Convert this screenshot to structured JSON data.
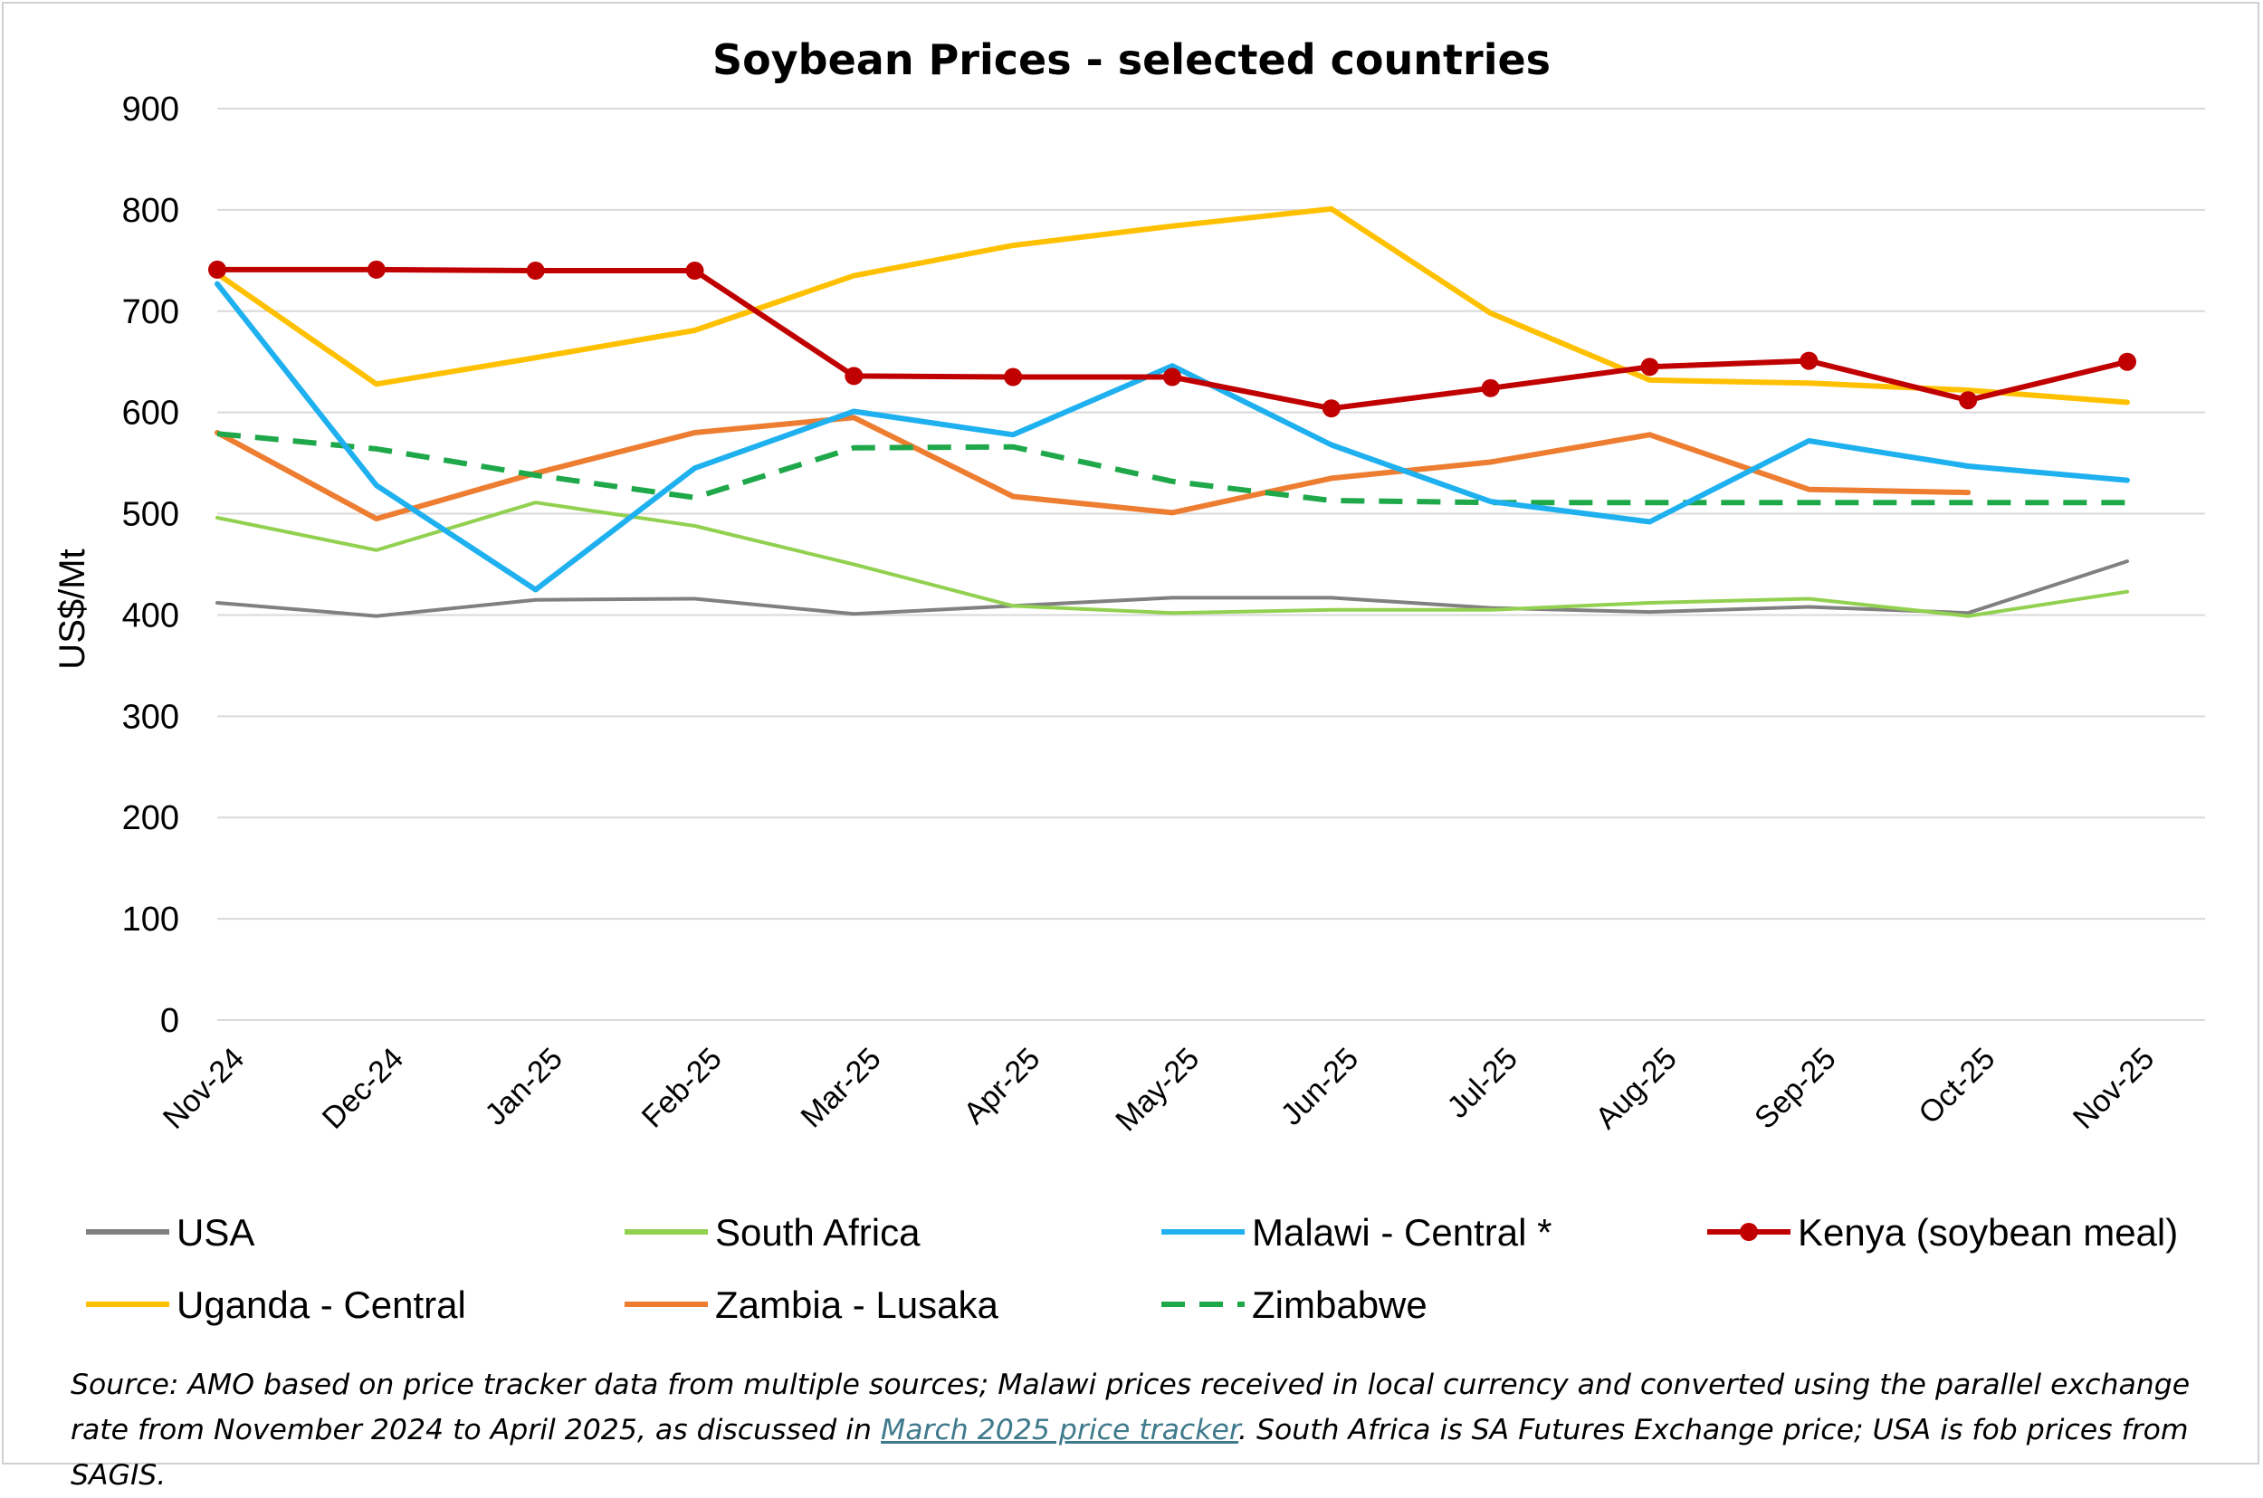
{
  "chart_data": {
    "type": "line",
    "title": "Soybean Prices - selected countries",
    "xlabel": "",
    "ylabel": "US$/Mt",
    "ylim": [
      0,
      900
    ],
    "yticks": [
      0,
      100,
      200,
      300,
      400,
      500,
      600,
      700,
      800,
      900
    ],
    "grid": true,
    "legend_position": "bottom",
    "categories": [
      "Nov-24",
      "Dec-24",
      "Jan-25",
      "Feb-25",
      "Mar-25",
      "Apr-25",
      "May-25",
      "Jun-25",
      "Jul-25",
      "Aug-25",
      "Sep-25",
      "Oct-25",
      "Nov-25"
    ],
    "series": [
      {
        "name": "USA",
        "color": "#808080",
        "style": "solid",
        "markers": false,
        "values": [
          412,
          399,
          415,
          416,
          401,
          409,
          417,
          417,
          407,
          403,
          408,
          402,
          453
        ]
      },
      {
        "name": "South Africa",
        "color": "#92d050",
        "style": "solid",
        "markers": false,
        "values": [
          496,
          464,
          511,
          488,
          450,
          409,
          402,
          405,
          405,
          412,
          416,
          399,
          423
        ]
      },
      {
        "name": "Malawi - Central *",
        "color": "#1eb0ef",
        "style": "solid",
        "markers": false,
        "values": [
          727,
          528,
          425,
          545,
          601,
          578,
          646,
          568,
          512,
          492,
          572,
          547,
          533
        ]
      },
      {
        "name": "Kenya (soybean meal)",
        "color": "#c00000",
        "style": "solid",
        "markers": true,
        "values": [
          741,
          741,
          740,
          740,
          636,
          635,
          635,
          604,
          624,
          645,
          651,
          612,
          650
        ]
      },
      {
        "name": "Uganda - Central",
        "color": "#ffc000",
        "style": "solid",
        "markers": false,
        "values": [
          737,
          628,
          654,
          681,
          735,
          765,
          784,
          801,
          698,
          632,
          629,
          622,
          610
        ]
      },
      {
        "name": "Zambia - Lusaka",
        "color": "#ed7d31",
        "style": "solid",
        "markers": false,
        "values": [
          580,
          495,
          540,
          580,
          595,
          517,
          501,
          535,
          551,
          578,
          524,
          521,
          null
        ]
      },
      {
        "name": "Zimbabwe",
        "color": "#1fa84a",
        "style": "dashed",
        "markers": false,
        "values": [
          579,
          564,
          538,
          516,
          565,
          566,
          532,
          513,
          511,
          511,
          511,
          511,
          511
        ]
      }
    ],
    "source_note": {
      "before_link": "Source: AMO based on price tracker data from multiple sources; Malawi prices received in local currency and converted using the parallel exchange rate from November 2024 to April 2025, as discussed in ",
      "link_text": "March 2025 price tracker",
      "after_link": ". South Africa is SA Futures Exchange price; USA is fob prices from SAGIS."
    }
  }
}
